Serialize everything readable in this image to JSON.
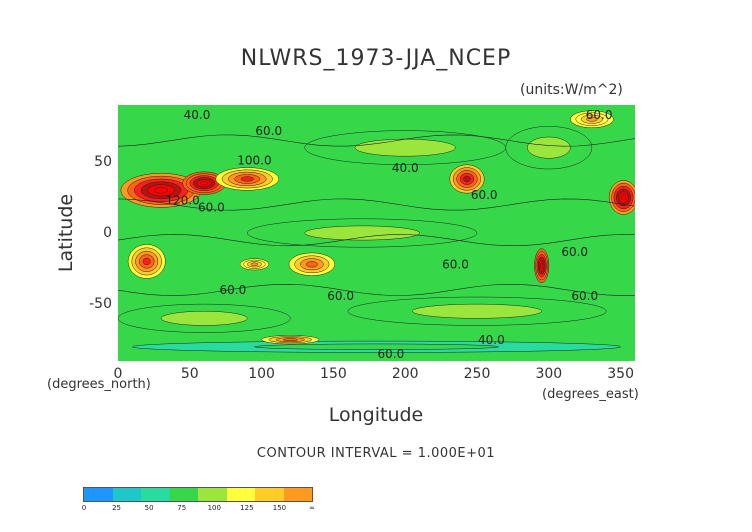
{
  "chart_data": {
    "type": "heatmap",
    "title": "NLWRS_1973-JJA_NCEP",
    "units": "(units:W/m^2)",
    "xlabel": "Longitude",
    "ylabel": "Latitude",
    "x_unit_note": "(degrees_east)",
    "y_unit_note": "(degrees_north)",
    "xlim": [
      0,
      360
    ],
    "ylim": [
      -90,
      90
    ],
    "x_ticks": [
      0,
      50,
      100,
      150,
      200,
      250,
      300,
      350
    ],
    "y_ticks": [
      50,
      0,
      -50
    ],
    "contour_interval": "CONTOUR INTERVAL = 1.000E+01",
    "contour_labels": [
      {
        "lon": 55,
        "lat": 80,
        "text": "40.0"
      },
      {
        "lon": 105,
        "lat": 69,
        "text": "60.0"
      },
      {
        "lon": 95,
        "lat": 48,
        "text": "100.0"
      },
      {
        "lon": 200,
        "lat": 43,
        "text": "40.0"
      },
      {
        "lon": 255,
        "lat": 24,
        "text": "60.0"
      },
      {
        "lon": 45,
        "lat": 20,
        "text": "120.0"
      },
      {
        "lon": 65,
        "lat": 15,
        "text": "60.0"
      },
      {
        "lon": 235,
        "lat": -25,
        "text": "60.0"
      },
      {
        "lon": 80,
        "lat": -43,
        "text": "60.0"
      },
      {
        "lon": 155,
        "lat": -47,
        "text": "60.0"
      },
      {
        "lon": 318,
        "lat": -16,
        "text": "60.0"
      },
      {
        "lon": 325,
        "lat": -47,
        "text": "60.0"
      },
      {
        "lon": 335,
        "lat": 80,
        "text": "60.0"
      },
      {
        "lon": 260,
        "lat": -78,
        "text": "40.0"
      },
      {
        "lon": 190,
        "lat": -88,
        "text": "60.0"
      }
    ],
    "colorbar": {
      "ticks": [
        "0",
        "25",
        "50",
        "75",
        "100",
        "125",
        "150",
        "∞"
      ],
      "colors": [
        "#1e96ff",
        "#1ec8c8",
        "#28dca0",
        "#36d84a",
        "#9be63c",
        "#ffff3c",
        "#ffcc28",
        "#ff9a1e",
        "#ff6414",
        "#ff1e1e",
        "#b41414",
        "#ff0000"
      ]
    },
    "regions": [
      {
        "lon": 30,
        "lat": 30,
        "rx": 28,
        "ry": 12,
        "value": 150
      },
      {
        "lon": 60,
        "lat": 35,
        "rx": 15,
        "ry": 8,
        "value": 160
      },
      {
        "lon": 90,
        "lat": 38,
        "rx": 22,
        "ry": 8,
        "value": 115
      },
      {
        "lon": 243,
        "lat": 38,
        "rx": 12,
        "ry": 10,
        "value": 130
      },
      {
        "lon": 352,
        "lat": 25,
        "rx": 10,
        "ry": 12,
        "value": 150
      },
      {
        "lon": 20,
        "lat": -20,
        "rx": 13,
        "ry": 12,
        "value": 115
      },
      {
        "lon": 135,
        "lat": -22,
        "rx": 16,
        "ry": 8,
        "value": 100
      },
      {
        "lon": 295,
        "lat": -23,
        "rx": 5,
        "ry": 12,
        "value": 160
      },
      {
        "lon": 95,
        "lat": -22,
        "rx": 10,
        "ry": 4,
        "value": 95
      },
      {
        "lon": 170,
        "lat": 0,
        "rx": 80,
        "ry": 10,
        "value": 55
      },
      {
        "lon": 60,
        "lat": -60,
        "rx": 60,
        "ry": 10,
        "value": 55
      },
      {
        "lon": 250,
        "lat": -55,
        "rx": 90,
        "ry": 10,
        "value": 60
      },
      {
        "lon": 200,
        "lat": 60,
        "rx": 70,
        "ry": 12,
        "value": 55
      },
      {
        "lon": 300,
        "lat": 60,
        "rx": 30,
        "ry": 15,
        "value": 50
      },
      {
        "lon": 180,
        "lat": -80,
        "rx": 170,
        "ry": 4,
        "value": 45
      },
      {
        "lon": 120,
        "lat": -75,
        "rx": 20,
        "ry": 3,
        "value": 100
      },
      {
        "lon": 330,
        "lat": 80,
        "rx": 15,
        "ry": 6,
        "value": 95
      }
    ]
  }
}
